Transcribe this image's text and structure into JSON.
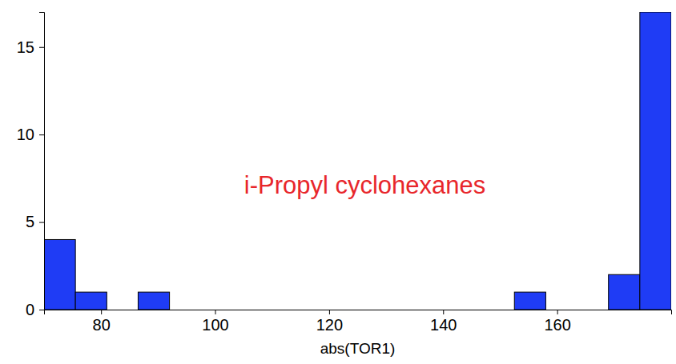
{
  "chart_data": {
    "type": "histogram",
    "x_label": "abs(TOR1)",
    "annotation": "i-Propyl cyclohexanes",
    "bins": [
      70,
      75.5,
      81,
      86.5,
      92,
      97.5,
      103,
      108.5,
      114,
      119.5,
      125,
      130.5,
      136,
      141.5,
      147,
      152.5,
      158,
      163.5,
      169,
      174.5,
      180
    ],
    "counts": [
      4,
      1,
      0,
      1,
      0,
      0,
      0,
      0,
      0,
      0,
      0,
      0,
      0,
      0,
      0,
      1,
      0,
      0,
      2,
      17
    ],
    "color": "#1f3cf5",
    "xlim": [
      70,
      180
    ],
    "xticks": [
      80,
      100,
      120,
      140,
      160
    ],
    "ylim": [
      0,
      17
    ],
    "yticks": [
      0,
      5,
      10,
      15
    ]
  }
}
